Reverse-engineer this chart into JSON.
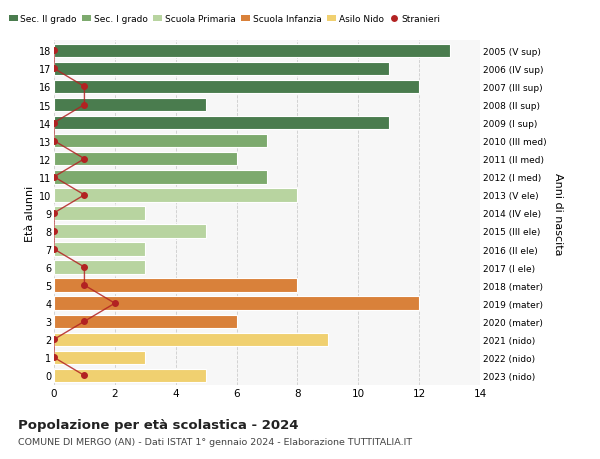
{
  "ages": [
    18,
    17,
    16,
    15,
    14,
    13,
    12,
    11,
    10,
    9,
    8,
    7,
    6,
    5,
    4,
    3,
    2,
    1,
    0
  ],
  "years": [
    "2005 (V sup)",
    "2006 (IV sup)",
    "2007 (III sup)",
    "2008 (II sup)",
    "2009 (I sup)",
    "2010 (III med)",
    "2011 (II med)",
    "2012 (I med)",
    "2013 (V ele)",
    "2014 (IV ele)",
    "2015 (III ele)",
    "2016 (II ele)",
    "2017 (I ele)",
    "2018 (mater)",
    "2019 (mater)",
    "2020 (mater)",
    "2021 (nido)",
    "2022 (nido)",
    "2023 (nido)"
  ],
  "bar_values": [
    13,
    11,
    12,
    5,
    11,
    7,
    6,
    7,
    8,
    3,
    5,
    3,
    3,
    8,
    12,
    6,
    9,
    3,
    5
  ],
  "bar_colors": [
    "#4a7c4e",
    "#4a7c4e",
    "#4a7c4e",
    "#4a7c4e",
    "#4a7c4e",
    "#7daa6e",
    "#7daa6e",
    "#7daa6e",
    "#b8d4a0",
    "#b8d4a0",
    "#b8d4a0",
    "#b8d4a0",
    "#b8d4a0",
    "#d9813a",
    "#d9813a",
    "#d9813a",
    "#f0d070",
    "#f0d070",
    "#f0d070"
  ],
  "stranieri_values": [
    0,
    0,
    1,
    1,
    0,
    0,
    1,
    0,
    1,
    0,
    0,
    0,
    1,
    1,
    2,
    1,
    0,
    0,
    1
  ],
  "legend_labels": [
    "Sec. II grado",
    "Sec. I grado",
    "Scuola Primaria",
    "Scuola Infanzia",
    "Asilo Nido",
    "Stranieri"
  ],
  "legend_colors": [
    "#4a7c4e",
    "#7daa6e",
    "#b8d4a0",
    "#d9813a",
    "#f0d070",
    "#b22222"
  ],
  "title": "Popolazione per età scolastica - 2024",
  "subtitle": "COMUNE DI MERGO (AN) - Dati ISTAT 1° gennaio 2024 - Elaborazione TUTTITALIA.IT",
  "right_ylabel": "Anni di nascita",
  "left_ylabel": "Età alunni",
  "xlim": [
    0,
    14
  ],
  "xticks": [
    0,
    2,
    4,
    6,
    8,
    10,
    12,
    14
  ],
  "background_color": "#ffffff",
  "plot_bg_color": "#f7f7f7",
  "grid_color": "#cccccc",
  "bar_height": 0.75,
  "stranieri_line_color": "#b22222",
  "stranieri_dot_color": "#b22222"
}
